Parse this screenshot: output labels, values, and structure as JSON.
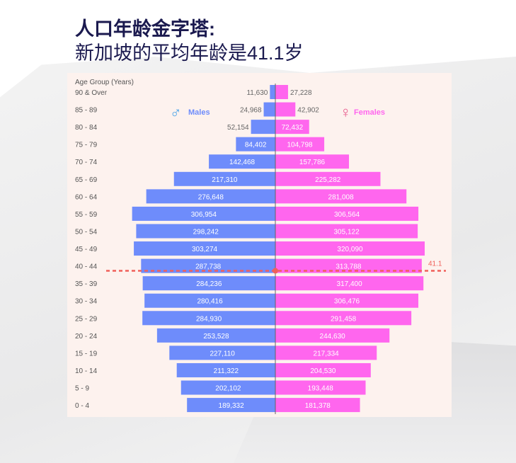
{
  "title": {
    "line1": "人口年龄金字塔:",
    "line2": "新加坡的平均年龄是41.1岁"
  },
  "chart_data": {
    "type": "bar",
    "orientation": "horizontal-pyramid",
    "ylabel": "Age Group (Years)",
    "categories": [
      "90 & Over",
      "85 - 89",
      "80 - 84",
      "75 - 79",
      "70 - 74",
      "65 - 69",
      "60 - 64",
      "55 - 59",
      "50 - 54",
      "45 - 49",
      "40 - 44",
      "35 - 39",
      "30 - 34",
      "25 - 29",
      "20 - 24",
      "15 - 19",
      "10 - 14",
      "5 - 9",
      "0 - 4"
    ],
    "series": [
      {
        "name": "Males",
        "color": "#6e8cfb",
        "icon": "male-symbol-icon",
        "values": [
          11630,
          24968,
          52154,
          84402,
          142468,
          217310,
          276648,
          306954,
          298242,
          303274,
          287738,
          284236,
          280416,
          284930,
          253528,
          227110,
          211322,
          202102,
          189332
        ],
        "labels": [
          "11,630",
          "24,968",
          "52,154",
          "84,402",
          "142,468",
          "217,310",
          "276,648",
          "306,954",
          "298,242",
          "303,274",
          "287,738",
          "284,236",
          "280,416",
          "284,930",
          "253,528",
          "227,110",
          "211,322",
          "202,102",
          "189,332"
        ]
      },
      {
        "name": "Females",
        "color": "#ff66ee",
        "icon": "female-symbol-icon",
        "values": [
          27228,
          42902,
          72432,
          104798,
          157786,
          225282,
          281008,
          306564,
          305122,
          320090,
          313788,
          317400,
          306476,
          291458,
          244630,
          217334,
          204530,
          193448,
          181378
        ],
        "labels": [
          "27,228",
          "42,902",
          "72,432",
          "104,798",
          "157,786",
          "225,282",
          "281,008",
          "306,564",
          "305,122",
          "320,090",
          "313,788",
          "317,400",
          "306,476",
          "291,458",
          "244,630",
          "217,334",
          "204,530",
          "193,448",
          "181,378"
        ]
      }
    ],
    "median_age": {
      "value": 41.1,
      "label": "41.1",
      "color": "#f0605a",
      "style": "dashed"
    },
    "grid": false,
    "legend": "inline-top"
  }
}
